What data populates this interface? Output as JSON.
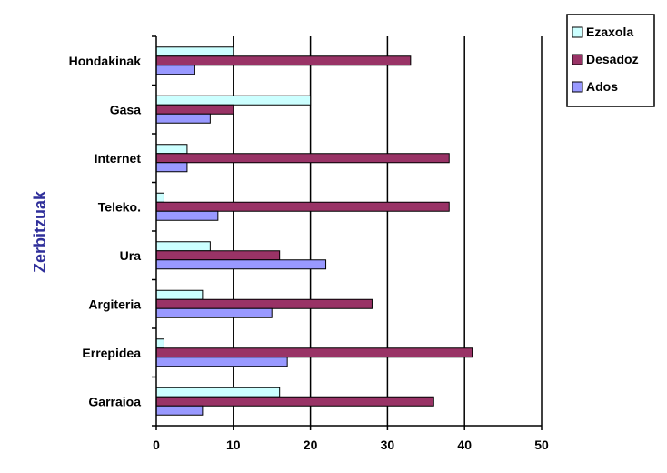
{
  "chart_data": {
    "type": "bar",
    "orientation": "horizontal",
    "title": "",
    "xlabel": "",
    "ylabel": "Zerbitzuak",
    "ylabel_color": "#2f2f9a",
    "xlim": [
      0,
      50
    ],
    "xticks": [
      "0",
      "10",
      "20",
      "30",
      "40",
      "50"
    ],
    "grid": "vertical",
    "legend_position": "top-right",
    "categories": [
      "Hondakinak",
      "Gasa",
      "Internet",
      "Teleko.",
      "Ura",
      "Argiteria",
      "Errepidea",
      "Garraioa"
    ],
    "series": [
      {
        "name": "Ezaxola",
        "color": "#ccffff",
        "values": [
          10,
          20,
          4,
          1,
          7,
          6,
          1,
          16
        ]
      },
      {
        "name": "Desadoz",
        "color": "#993366",
        "values": [
          33,
          10,
          38,
          38,
          16,
          28,
          41,
          36
        ]
      },
      {
        "name": "Ados",
        "color": "#9999ff",
        "values": [
          5,
          7,
          4,
          8,
          22,
          15,
          17,
          6
        ]
      }
    ]
  }
}
